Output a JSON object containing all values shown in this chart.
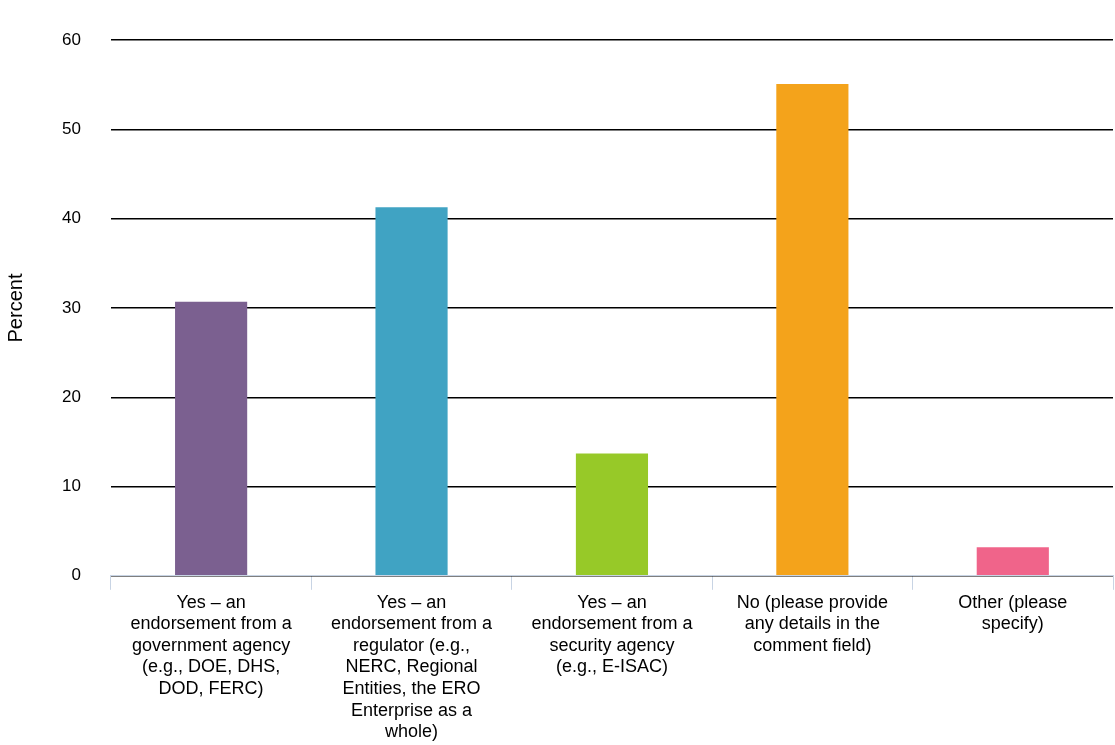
{
  "chart_data": {
    "type": "bar",
    "ylabel": "Percent",
    "categories": [
      "Yes – an endorsement from a government agency (e.g., DOE, DHS, DOD, FERC)",
      "Yes – an endorsement from a regulator (e.g., NERC, Regional Entities, the ERO Enterprise as a whole)",
      "Yes – an endorsement from a security agency (e.g., E-ISAC)",
      "No (please provide any details in the comment field)",
      "Other (please specify)"
    ],
    "values": [
      30.7,
      41.3,
      13.7,
      55.1,
      3.2
    ],
    "colors": [
      "#7b6090",
      "#40a3c3",
      "#97c928",
      "#f4a31b",
      "#f0648a"
    ],
    "ylim": [
      0,
      60
    ],
    "yticks": [
      0,
      10,
      20,
      30,
      40,
      50,
      60
    ],
    "grid": "y"
  }
}
